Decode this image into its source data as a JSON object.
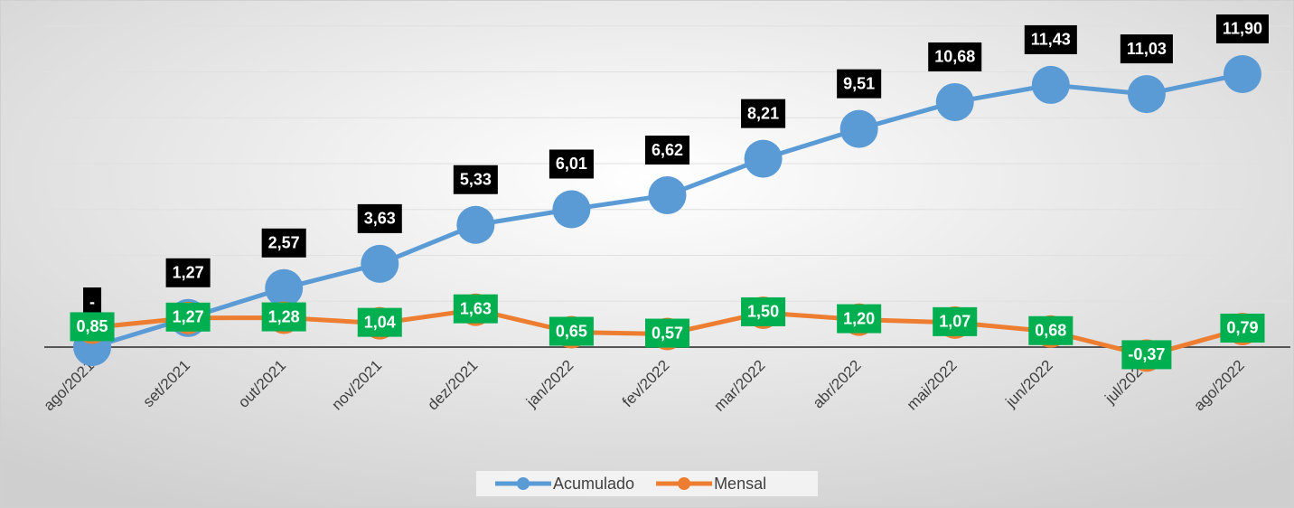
{
  "chart_data": {
    "type": "line",
    "categories": [
      "ago/2021",
      "set/2021",
      "out/2021",
      "nov/2021",
      "dez/2021",
      "jan/2022",
      "fev/2022",
      "mar/2022",
      "abr/2022",
      "mai/2022",
      "jun/2022",
      "jul/2022",
      "ago/2022"
    ],
    "series": [
      {
        "name": "Acumulado",
        "color": "#5b9bd5",
        "label_box": "#000000",
        "values": [
          0,
          1.27,
          2.57,
          3.63,
          5.33,
          6.01,
          6.62,
          8.21,
          9.51,
          10.68,
          11.43,
          11.03,
          11.9
        ],
        "value_labels": [
          "-",
          "1,27",
          "2,57",
          "3,63",
          "5,33",
          "6,01",
          "6,62",
          "8,21",
          "9,51",
          "10,68",
          "11,43",
          "11,03",
          "11,90"
        ]
      },
      {
        "name": "Mensal",
        "color": "#ed7d31",
        "label_box": "#00b050",
        "values": [
          0.85,
          1.27,
          1.28,
          1.04,
          1.63,
          0.65,
          0.57,
          1.5,
          1.2,
          1.07,
          0.68,
          -0.37,
          0.79
        ],
        "value_labels": [
          "0,85",
          "1,27",
          "1,28",
          "1,04",
          "1,63",
          "0,65",
          "0,57",
          "1,50",
          "1,20",
          "1,07",
          "0,68",
          "-0,37",
          "0,79"
        ]
      }
    ],
    "ylim": [
      -1,
      14
    ],
    "yticks": [
      0,
      2,
      4,
      6,
      8,
      10,
      12,
      14
    ],
    "grid": true,
    "legend": "bottom"
  }
}
